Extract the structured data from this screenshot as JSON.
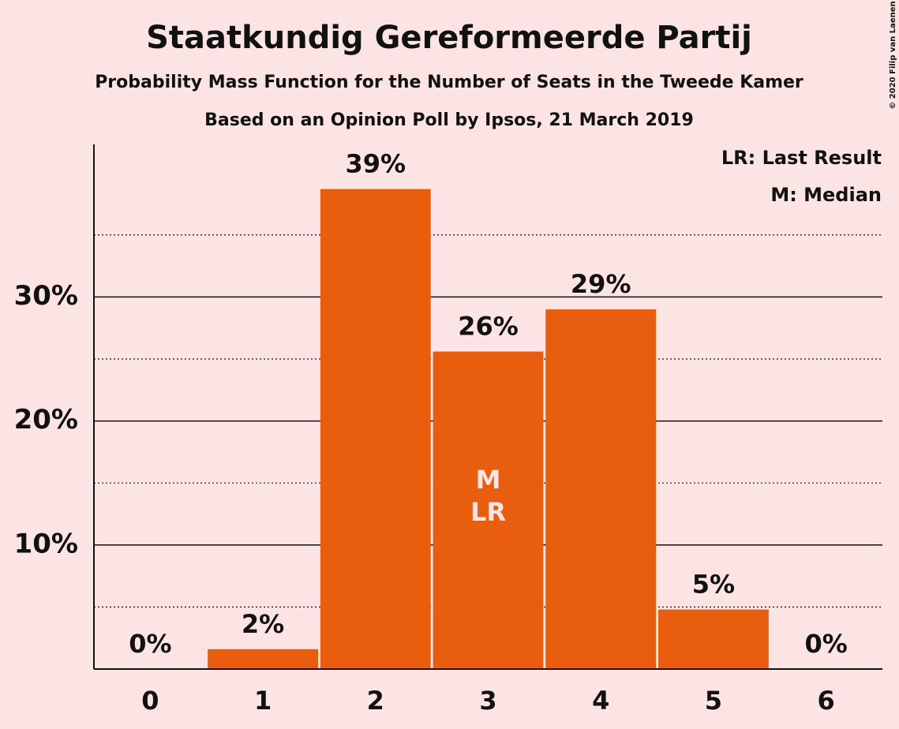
{
  "chart_data": {
    "type": "bar",
    "title": "Staatkundig Gereformeerde Partij",
    "subtitle": "Probability Mass Function for the Number of Seats in the Tweede Kamer",
    "subtitle2": "Based on an Opinion Poll by Ipsos, 21 March 2019",
    "copyright": "© 2020 Filip van Laenen",
    "legend": [
      "LR: Last Result",
      "M: Median"
    ],
    "categories": [
      "0",
      "1",
      "2",
      "3",
      "4",
      "5",
      "6"
    ],
    "values": [
      0,
      1.6,
      38.7,
      25.6,
      29.0,
      4.8,
      0
    ],
    "value_labels": [
      "0%",
      "2%",
      "39%",
      "26%",
      "29%",
      "5%",
      "0%"
    ],
    "color": "#e85e0e",
    "ylim": [
      0,
      42.3
    ],
    "yticks": [
      {
        "value": 10,
        "label": "10%"
      },
      {
        "value": 20,
        "label": "20%"
      },
      {
        "value": 30,
        "label": "30%"
      }
    ],
    "minor_gridlines": [
      5,
      15,
      25,
      35
    ],
    "median": 3,
    "median_label": "M",
    "last_result": 3,
    "last_result_label": "LR",
    "grid": true
  }
}
